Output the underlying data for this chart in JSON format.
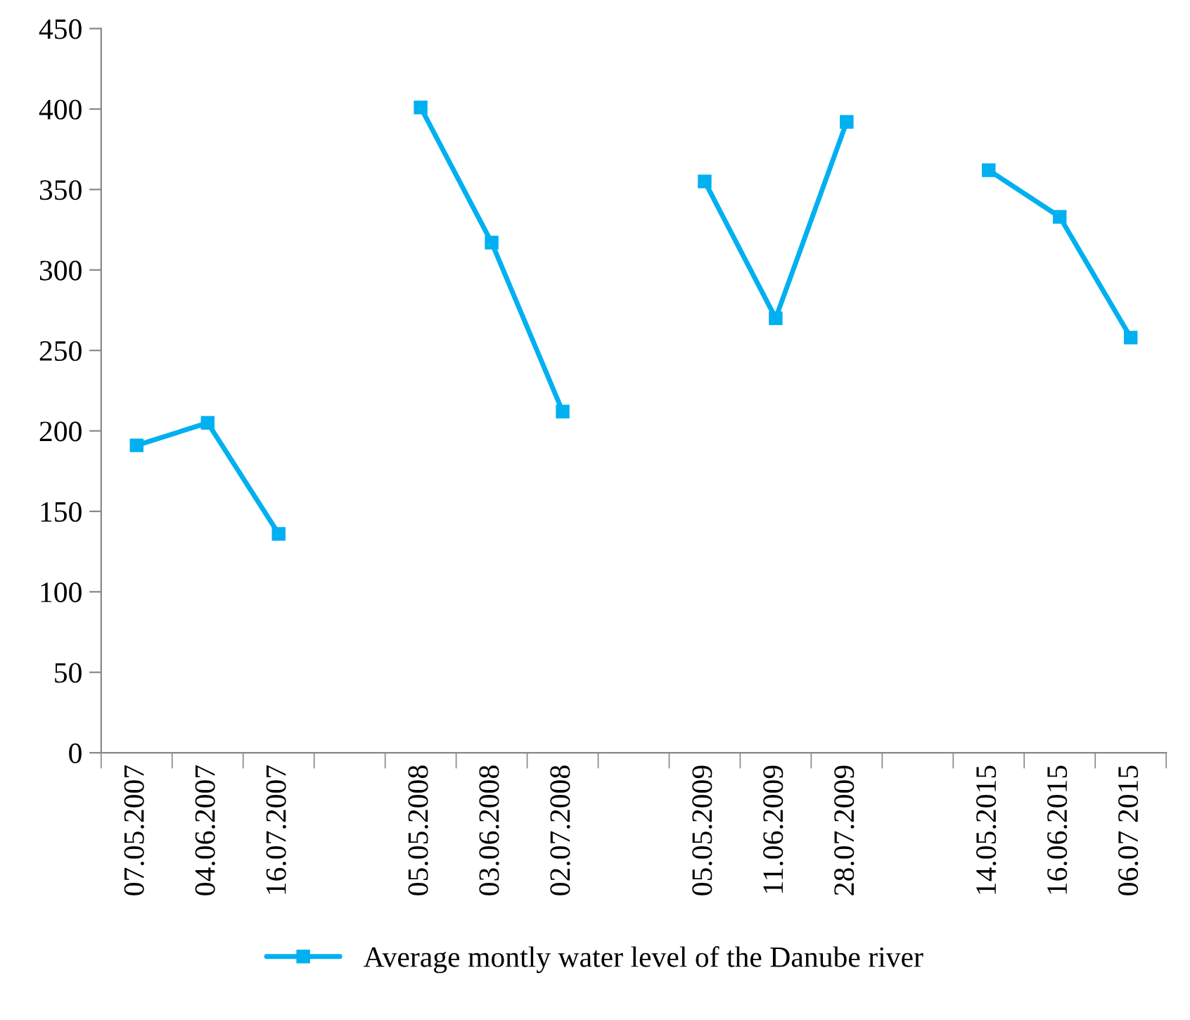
{
  "chart_data": {
    "type": "line",
    "categories": [
      "07.05.2007",
      "04.06.2007",
      "16.07.2007",
      null,
      "05.05.2008",
      "03.06.2008",
      "02.07.2008",
      null,
      "05.05.2009",
      "11.06.2009",
      "28.07.2009",
      null,
      "14.05.2015",
      "16.06.2015",
      "06.07 2015"
    ],
    "series": [
      {
        "name": "Average montly water level of the Danube river",
        "color": "#00b0f0",
        "values": [
          191,
          205,
          136,
          null,
          401,
          317,
          212,
          null,
          355,
          270,
          392,
          null,
          362,
          333,
          258
        ]
      }
    ],
    "ylim": [
      0,
      450
    ],
    "yticks": [
      0,
      50,
      100,
      150,
      200,
      250,
      300,
      350,
      400,
      450
    ],
    "grid": false,
    "legend": "bottom",
    "marker": "square",
    "line_style": "solid"
  }
}
